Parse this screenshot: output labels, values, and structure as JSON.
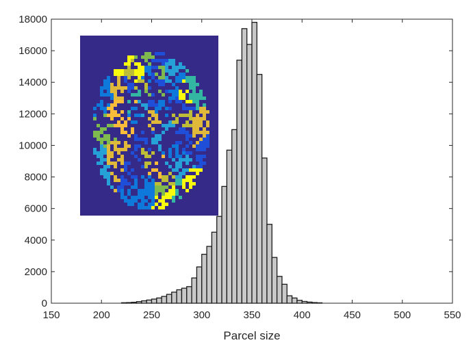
{
  "chart_data": {
    "type": "histogram",
    "title": "",
    "xlabel": "Parcel size",
    "ylabel": "",
    "xlim": [
      150,
      550
    ],
    "ylim": [
      0,
      18000
    ],
    "x_ticks": [
      150,
      200,
      250,
      300,
      350,
      400,
      450,
      500,
      550
    ],
    "y_ticks": [
      0,
      2000,
      4000,
      6000,
      8000,
      10000,
      12000,
      14000,
      16000,
      18000
    ],
    "bin_width": 5,
    "bins": [
      {
        "x0": 220,
        "x1": 225,
        "value": 30
      },
      {
        "x0": 225,
        "x1": 230,
        "value": 40
      },
      {
        "x0": 230,
        "x1": 235,
        "value": 60
      },
      {
        "x0": 235,
        "x1": 240,
        "value": 100
      },
      {
        "x0": 240,
        "x1": 245,
        "value": 150
      },
      {
        "x0": 245,
        "x1": 250,
        "value": 200
      },
      {
        "x0": 250,
        "x1": 255,
        "value": 260
      },
      {
        "x0": 255,
        "x1": 260,
        "value": 330
      },
      {
        "x0": 260,
        "x1": 265,
        "value": 430
      },
      {
        "x0": 265,
        "x1": 270,
        "value": 560
      },
      {
        "x0": 270,
        "x1": 275,
        "value": 700
      },
      {
        "x0": 275,
        "x1": 280,
        "value": 850
      },
      {
        "x0": 280,
        "x1": 285,
        "value": 950
      },
      {
        "x0": 285,
        "x1": 290,
        "value": 1050
      },
      {
        "x0": 290,
        "x1": 295,
        "value": 1600
      },
      {
        "x0": 295,
        "x1": 300,
        "value": 2300
      },
      {
        "x0": 300,
        "x1": 305,
        "value": 3100
      },
      {
        "x0": 305,
        "x1": 310,
        "value": 3600
      },
      {
        "x0": 310,
        "x1": 315,
        "value": 4500
      },
      {
        "x0": 315,
        "x1": 320,
        "value": 5500
      },
      {
        "x0": 320,
        "x1": 325,
        "value": 7400
      },
      {
        "x0": 325,
        "x1": 330,
        "value": 9700
      },
      {
        "x0": 330,
        "x1": 335,
        "value": 11000
      },
      {
        "x0": 335,
        "x1": 340,
        "value": 15400
      },
      {
        "x0": 340,
        "x1": 345,
        "value": 17400
      },
      {
        "x0": 345,
        "x1": 350,
        "value": 16400
      },
      {
        "x0": 350,
        "x1": 355,
        "value": 17800
      },
      {
        "x0": 355,
        "x1": 360,
        "value": 14500
      },
      {
        "x0": 360,
        "x1": 365,
        "value": 9200
      },
      {
        "x0": 365,
        "x1": 370,
        "value": 5000
      },
      {
        "x0": 370,
        "x1": 375,
        "value": 2900
      },
      {
        "x0": 375,
        "x1": 380,
        "value": 1700
      },
      {
        "x0": 380,
        "x1": 385,
        "value": 1200
      },
      {
        "x0": 385,
        "x1": 390,
        "value": 470
      },
      {
        "x0": 390,
        "x1": 395,
        "value": 330
      },
      {
        "x0": 395,
        "x1": 400,
        "value": 180
      },
      {
        "x0": 400,
        "x1": 405,
        "value": 110
      },
      {
        "x0": 405,
        "x1": 410,
        "value": 70
      },
      {
        "x0": 410,
        "x1": 415,
        "value": 40
      },
      {
        "x0": 415,
        "x1": 420,
        "value": 25
      }
    ],
    "bar_color": "#c8c8c8",
    "edge_color": "#1a1a1a",
    "inset": {
      "description_name": "brain-parcellation-inset",
      "background": "#352a87",
      "palette": [
        "#f9fb0e",
        "#e0b93a",
        "#bebd38",
        "#33b6a2",
        "#25a1d7",
        "#0e78db",
        "#1f4fd8",
        "#fdbb3a",
        "#7fba4e"
      ]
    }
  }
}
